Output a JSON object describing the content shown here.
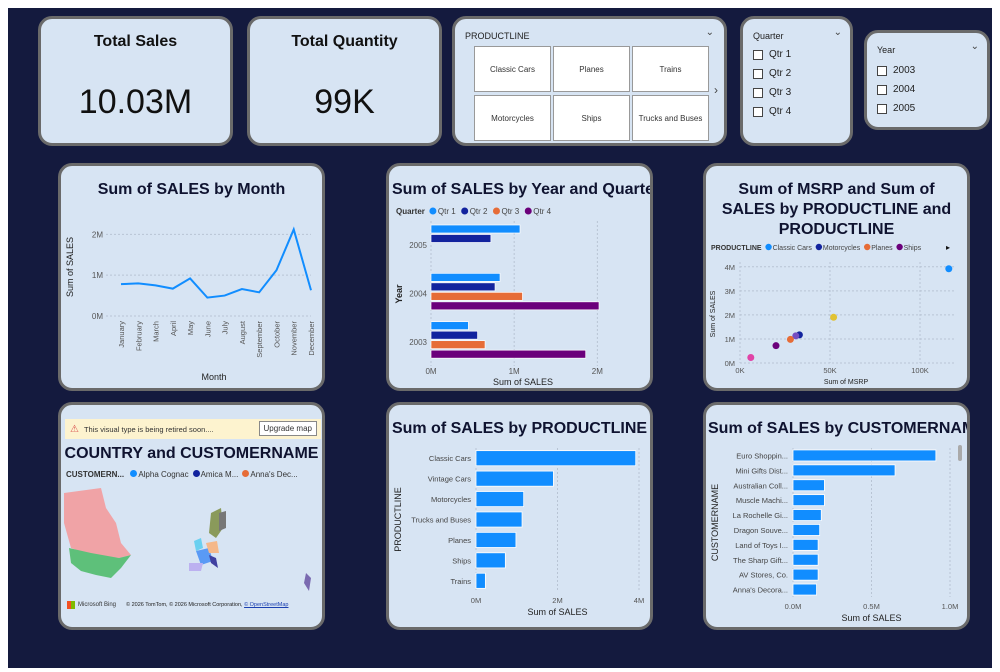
{
  "kpis": {
    "total_sales": {
      "label": "Total Sales",
      "value": "10.03M"
    },
    "total_quantity": {
      "label": "Total Quantity",
      "value": "99K"
    }
  },
  "productline_slicer": {
    "header": "PRODUCTLINE",
    "tiles": [
      "Classic Cars",
      "Planes",
      "Trains",
      "Motorcycles",
      "Ships",
      "Trucks and Buses"
    ],
    "next_icon": "chevron-right-icon"
  },
  "quarter_slicer": {
    "header": "Quarter",
    "options": [
      "Qtr 1",
      "Qtr 2",
      "Qtr 3",
      "Qtr 4"
    ]
  },
  "year_slicer": {
    "header": "Year",
    "options": [
      "2003",
      "2004",
      "2005"
    ]
  },
  "map": {
    "warning": "This visual type is being retired soon....",
    "upgrade_label": "Upgrade map",
    "title": "COUNTRY and CUSTOMERNAME",
    "legend_title": "CUSTOMERN...",
    "legend": [
      {
        "name": "Alpha Cognac",
        "color": "#118dff"
      },
      {
        "name": "Amica M...",
        "color": "#12239e"
      },
      {
        "name": "Anna's Dec...",
        "color": "#e66c37"
      }
    ],
    "bing": "Microsoft Bing",
    "copyright": "© 2026 TomTom, © 2026 Microsoft Corporation,",
    "osm": "© OpenStreetMap"
  },
  "chart_data": [
    {
      "id": "month",
      "type": "line",
      "title": "Sum of SALES by Month",
      "xlabel": "Month",
      "ylabel": "Sum of SALES",
      "categories": [
        "January",
        "February",
        "March",
        "April",
        "May",
        "June",
        "July",
        "August",
        "September",
        "October",
        "November",
        "December"
      ],
      "values": [
        0.78,
        0.8,
        0.75,
        0.67,
        0.92,
        0.45,
        0.5,
        0.66,
        0.58,
        1.12,
        2.12,
        0.63
      ],
      "unit": "M",
      "yticks": [
        "0M",
        "1M",
        "2M"
      ],
      "ylim": [
        0,
        2.4
      ],
      "color": "#118dff",
      "grid": true
    },
    {
      "id": "yearq",
      "type": "bar",
      "title": "Sum of SALES by Year and Quarter",
      "xlabel": "Sum of SALES",
      "ylabel": "Year",
      "legend_title": "Quarter",
      "categories": [
        "2005",
        "2004",
        "2003"
      ],
      "series": [
        {
          "name": "Qtr 1",
          "color": "#118dff",
          "values": [
            1.07,
            0.83,
            0.45
          ]
        },
        {
          "name": "Qtr 2",
          "color": "#12239e",
          "values": [
            0.72,
            0.77,
            0.56
          ]
        },
        {
          "name": "Qtr 3",
          "color": "#e66c37",
          "values": [
            null,
            1.1,
            0.65
          ]
        },
        {
          "name": "Qtr 4",
          "color": "#6b007b",
          "values": [
            null,
            2.02,
            1.86
          ]
        }
      ],
      "xticks": [
        "0M",
        "1M",
        "2M"
      ],
      "xlim": [
        0,
        2.2
      ],
      "grid": true
    },
    {
      "id": "scatter",
      "type": "scatter",
      "title": "Sum of MSRP and Sum of SALES by PRODUCTLINE and PRODUCTLINE",
      "xlabel": "Sum of MSRP",
      "ylabel": "Sum of SALES",
      "legend_title": "PRODUCTLINE",
      "legend": [
        {
          "name": "Classic Cars",
          "color": "#118dff"
        },
        {
          "name": "Motorcycles",
          "color": "#12239e"
        },
        {
          "name": "Planes",
          "color": "#e66c37"
        },
        {
          "name": "Ships",
          "color": "#6b007b"
        }
      ],
      "points": [
        {
          "x": 116,
          "y": 3.92,
          "color": "#118dff"
        },
        {
          "x": 52,
          "y": 1.9,
          "color": "#e1c233"
        },
        {
          "x": 33,
          "y": 1.17,
          "color": "#12239e"
        },
        {
          "x": 31,
          "y": 1.13,
          "color": "#744ec2"
        },
        {
          "x": 28,
          "y": 0.98,
          "color": "#e66c37"
        },
        {
          "x": 20,
          "y": 0.72,
          "color": "#6b007b"
        },
        {
          "x": 6,
          "y": 0.23,
          "color": "#e044a7"
        }
      ],
      "xticks": [
        "0K",
        "50K",
        "100K"
      ],
      "yticks": [
        "0M",
        "1M",
        "2M",
        "3M",
        "4M"
      ],
      "xlim": [
        0,
        120
      ],
      "ylim": [
        0,
        4.2
      ],
      "grid": true
    },
    {
      "id": "prod",
      "type": "bar",
      "title": "Sum of SALES by PRODUCTLINE",
      "xlabel": "Sum of SALES",
      "ylabel": "PRODUCTLINE",
      "categories": [
        "Classic Cars",
        "Vintage Cars",
        "Motorcycles",
        "Trucks and Buses",
        "Planes",
        "Ships",
        "Trains"
      ],
      "values": [
        3.92,
        1.9,
        1.17,
        1.13,
        0.98,
        0.72,
        0.23
      ],
      "xticks": [
        "0M",
        "2M",
        "4M"
      ],
      "xlim": [
        0,
        4
      ],
      "color": "#118dff",
      "grid": true
    },
    {
      "id": "cust",
      "type": "bar",
      "title": "Sum of SALES by CUSTOMERNAME",
      "xlabel": "Sum of SALES",
      "ylabel": "CUSTOMERNAME",
      "categories": [
        "Euro Shoppin...",
        "Mini Gifts Dist...",
        "Australian Coll...",
        "Muscle Machi...",
        "La Rochelle Gi...",
        "Dragon Souve...",
        "Land of Toys I...",
        "The Sharp Gift...",
        "AV Stores, Co.",
        "Anna's Decora..."
      ],
      "values": [
        0.91,
        0.65,
        0.2,
        0.2,
        0.18,
        0.17,
        0.16,
        0.16,
        0.16,
        0.15
      ],
      "xticks": [
        "0.0M",
        "0.5M",
        "1.0M"
      ],
      "xlim": [
        0,
        1
      ],
      "color": "#118dff",
      "grid": true
    }
  ]
}
